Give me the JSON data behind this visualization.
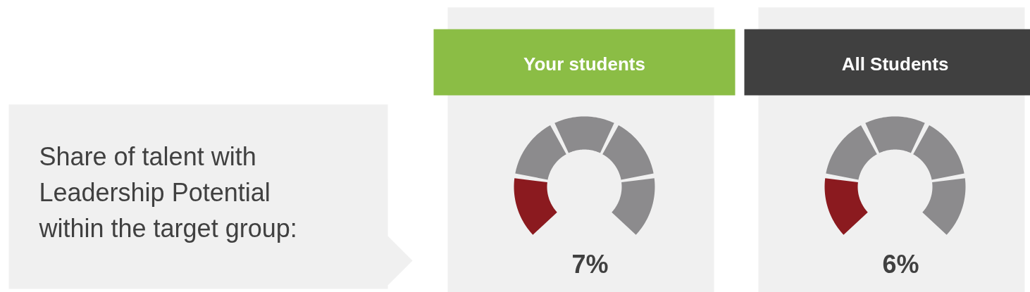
{
  "chart_data": [
    {
      "type": "other",
      "annotations": [
        "Share of talent with\nLeadership Potential\nwithin the target group:"
      ]
    },
    {
      "type": "donut",
      "title": "Your students",
      "categories": [
        null,
        null,
        null,
        null,
        null
      ],
      "values": [
        20,
        20,
        20,
        20,
        20
      ],
      "colors": [
        "#8b1a1f",
        "#8c8b8d",
        "#8c8b8d",
        "#8c8b8d",
        "#8c8b8d"
      ],
      "annotations": [
        "7%"
      ]
    },
    {
      "type": "donut",
      "title": "All Students",
      "categories": [
        null,
        null,
        null,
        null,
        null
      ],
      "values": [
        20,
        20,
        20,
        20,
        20
      ],
      "colors": [
        "#8b1a1f",
        "#8c8b8d",
        "#8c8b8d",
        "#8c8b8d",
        "#8c8b8d"
      ],
      "annotations": [
        "6%"
      ]
    }
  ]
}
